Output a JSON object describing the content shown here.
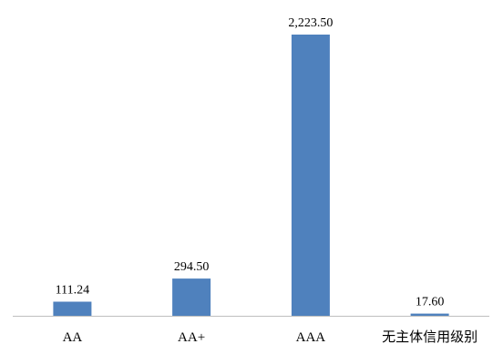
{
  "chart_data": {
    "type": "bar",
    "title": "",
    "xlabel": "",
    "ylabel": "",
    "categories": [
      "AA",
      "AA+",
      "AAA",
      "无主体信用级别"
    ],
    "values": [
      111.24,
      294.5,
      2223.5,
      17.6
    ],
    "value_labels": [
      "111.24",
      "294.50",
      "2,223.50",
      "17.60"
    ],
    "ylim": [
      0,
      2223.5
    ],
    "grid": false,
    "legend": "none",
    "bar_color": "#4f81bd",
    "axis_color": "#bfbfbf"
  }
}
